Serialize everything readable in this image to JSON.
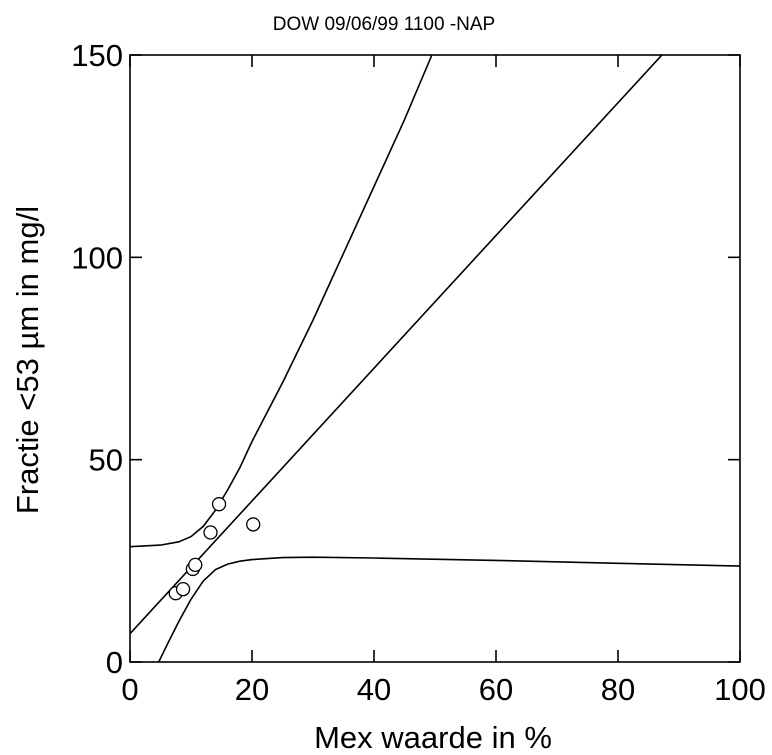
{
  "chart_data": {
    "type": "scatter",
    "title": "DOW 09/06/99 1100 -NAP",
    "xlabel": "Mex waarde in %",
    "ylabel": "Fractie <53 µm in mg/l",
    "xlim": [
      0,
      100
    ],
    "ylim": [
      0,
      150
    ],
    "x_ticks": [
      0,
      20,
      40,
      60,
      80,
      100
    ],
    "y_ticks": [
      0,
      50,
      100,
      150
    ],
    "x_tick_labels": [
      "0",
      "20",
      "40",
      "60",
      "80",
      "100"
    ],
    "y_tick_labels": [
      "0",
      "50",
      "100",
      "150"
    ],
    "grid": false,
    "points": {
      "x": [
        7.5,
        8.7,
        10.3,
        10.7,
        13.2,
        14.6,
        20.2
      ],
      "y": [
        17,
        18,
        23,
        24,
        32,
        39,
        34
      ]
    },
    "fit_line": {
      "intercept": 7,
      "slope": 1.64
    },
    "confidence_band": {
      "upper": [
        [
          0,
          28.5
        ],
        [
          5,
          28.9
        ],
        [
          8,
          29.7
        ],
        [
          10,
          31
        ],
        [
          12,
          33.5
        ],
        [
          14,
          37.5
        ],
        [
          16,
          42.5
        ],
        [
          18,
          48
        ],
        [
          20,
          54.5
        ],
        [
          25,
          69
        ],
        [
          30,
          84.5
        ],
        [
          35,
          101
        ],
        [
          40,
          117.5
        ],
        [
          45,
          134
        ],
        [
          49.5,
          150
        ]
      ],
      "lower": [
        [
          4.7,
          0
        ],
        [
          6,
          4
        ],
        [
          8,
          10
        ],
        [
          10,
          15.5
        ],
        [
          12,
          20
        ],
        [
          14,
          22.8
        ],
        [
          16,
          24.2
        ],
        [
          18,
          24.9
        ],
        [
          20,
          25.3
        ],
        [
          25,
          25.8
        ],
        [
          30,
          25.9
        ],
        [
          40,
          25.7
        ],
        [
          60,
          25.1
        ],
        [
          80,
          24.4
        ],
        [
          100,
          23.7
        ]
      ]
    }
  }
}
